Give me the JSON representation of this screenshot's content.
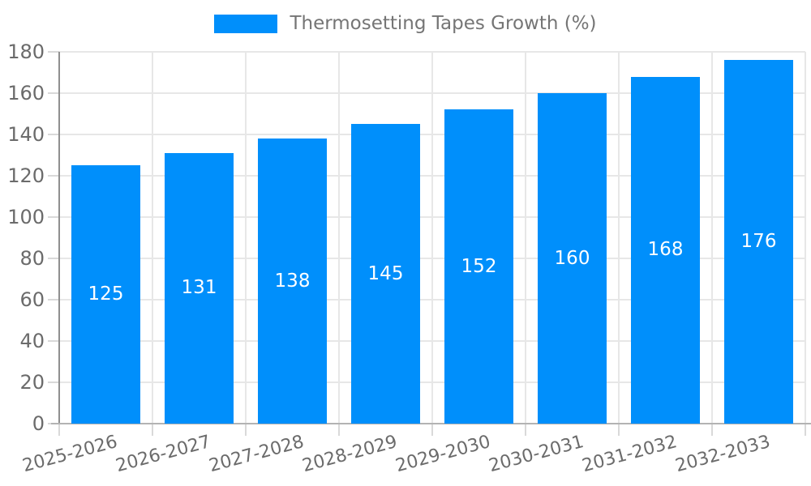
{
  "chart_data": {
    "type": "bar",
    "title": "Thermosetting Tapes Growth (%)",
    "legend": {
      "label": "Thermosetting Tapes Growth (%)",
      "position": "top"
    },
    "categories": [
      "2025-2026",
      "2026-2027",
      "2027-2028",
      "2028-2029",
      "2029-2030",
      "2030-2031",
      "2031-2032",
      "2032-2033"
    ],
    "series": [
      {
        "name": "Thermosetting Tapes Growth (%)",
        "values": [
          125,
          131,
          138,
          145,
          152,
          160,
          168,
          176
        ]
      }
    ],
    "value_labels": [
      "125",
      "131",
      "138",
      "145",
      "152",
      "160",
      "168",
      "176"
    ],
    "xlabel": "",
    "ylabel": "",
    "ylim": [
      0,
      180
    ],
    "yticks": [
      0,
      20,
      40,
      60,
      80,
      100,
      120,
      140,
      160,
      180
    ],
    "grid": true,
    "x_label_rotation_deg": -15,
    "colors": {
      "bar": "#008FFB",
      "value_label": "#ffffff",
      "axis_text": "#6b6b6b",
      "legend_text": "#757575",
      "gridline": "#e7e7e7",
      "tick": "#d9d9d9",
      "y_axis_line": "#8f8f8f",
      "x_axis_line": "#b3b3b3"
    }
  }
}
